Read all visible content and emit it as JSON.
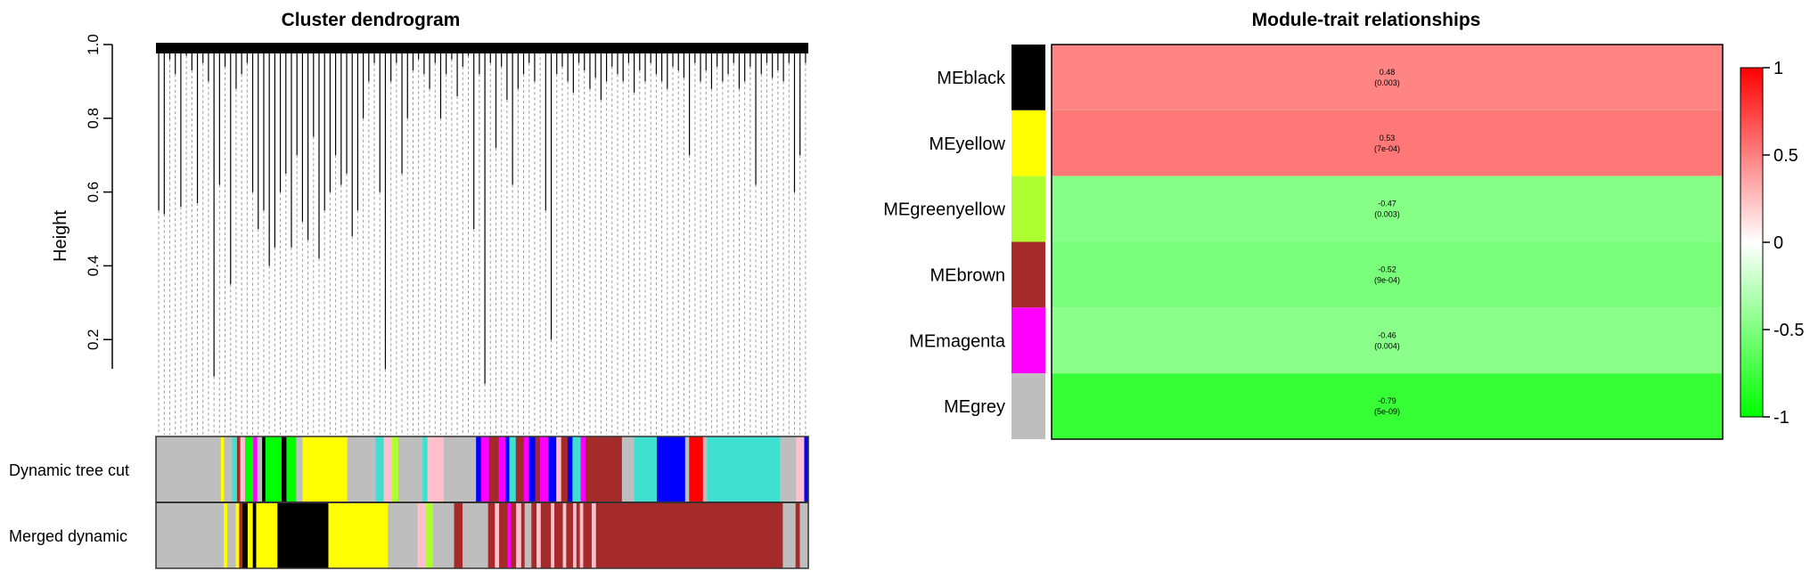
{
  "chart_data": [
    {
      "type": "dendrogram",
      "title": "Cluster dendrogram",
      "ylabel": "Height",
      "xlabel": "",
      "ylim": [
        0.0,
        1.0
      ],
      "yticks": [
        0.2,
        0.4,
        0.6,
        0.8,
        1.0
      ],
      "ytick_labels": [
        "0.2",
        "0.4",
        "0.6",
        "0.8",
        "1.0"
      ],
      "leaf_heights": [
        0.55,
        0.54,
        0.96,
        0.92,
        0.56,
        0.97,
        0.93,
        0.57,
        0.95,
        0.9,
        0.1,
        0.62,
        0.94,
        0.35,
        0.88,
        0.92,
        0.95,
        0.6,
        0.5,
        0.55,
        0.4,
        0.45,
        0.6,
        0.65,
        0.45,
        0.7,
        0.52,
        0.47,
        0.75,
        0.42,
        0.55,
        0.6,
        0.7,
        0.62,
        0.65,
        0.48,
        0.55,
        0.8,
        0.9,
        0.95,
        0.6,
        0.12,
        0.9,
        0.95,
        0.65,
        0.8,
        0.93,
        0.96,
        0.92,
        0.88,
        0.95,
        0.8,
        0.92,
        0.96,
        0.86,
        0.94,
        0.97,
        0.5,
        0.92,
        0.08,
        0.95,
        0.72,
        0.94,
        0.85,
        0.62,
        0.88,
        0.92,
        0.95,
        0.9,
        0.98,
        0.55,
        0.2,
        0.92,
        0.94,
        0.9,
        0.87,
        0.95,
        0.93,
        0.88,
        0.91,
        0.85,
        0.9,
        0.94,
        0.92,
        0.9,
        0.95,
        0.87,
        0.93,
        0.9,
        0.95,
        0.92,
        0.9,
        0.88,
        0.94,
        0.93,
        0.91,
        0.7,
        0.95,
        0.9,
        0.93,
        0.88,
        0.94,
        0.9,
        0.92,
        0.95,
        0.88,
        0.9,
        0.94,
        0.62,
        0.92,
        0.95,
        0.91,
        0.93,
        0.9,
        0.95,
        0.6,
        0.7,
        0.95
      ],
      "color_bars": [
        {
          "label": "Dynamic tree cut",
          "segments": [
            {
              "color": "#bebebe",
              "w": 0.08
            },
            {
              "color": "#ffff00",
              "w": 0.004
            },
            {
              "color": "#bebebe",
              "w": 0.01
            },
            {
              "color": "#40e0d0",
              "w": 0.006
            },
            {
              "color": "#a52a2a",
              "w": 0.004
            },
            {
              "color": "#ffc0cb",
              "w": 0.006
            },
            {
              "color": "#00ff00",
              "w": 0.01
            },
            {
              "color": "#ff00ff",
              "w": 0.005
            },
            {
              "color": "#bebebe",
              "w": 0.006
            },
            {
              "color": "#000000",
              "w": 0.004
            },
            {
              "color": "#00ff00",
              "w": 0.02
            },
            {
              "color": "#000000",
              "w": 0.006
            },
            {
              "color": "#00ff00",
              "w": 0.012
            },
            {
              "color": "#bebebe",
              "w": 0.008
            },
            {
              "color": "#ffff00",
              "w": 0.055
            },
            {
              "color": "#bebebe",
              "w": 0.035
            },
            {
              "color": "#40e0d0",
              "w": 0.01
            },
            {
              "color": "#ffc0cb",
              "w": 0.01
            },
            {
              "color": "#adff2f",
              "w": 0.008
            },
            {
              "color": "#bebebe",
              "w": 0.03
            },
            {
              "color": "#40e0d0",
              "w": 0.006
            },
            {
              "color": "#ffc0cb",
              "w": 0.02
            },
            {
              "color": "#bebebe",
              "w": 0.04
            },
            {
              "color": "#0000ff",
              "w": 0.006
            },
            {
              "color": "#ff00ff",
              "w": 0.01
            },
            {
              "color": "#a52a2a",
              "w": 0.012
            },
            {
              "color": "#ff00ff",
              "w": 0.008
            },
            {
              "color": "#0000ff",
              "w": 0.005
            },
            {
              "color": "#40e0d0",
              "w": 0.008
            },
            {
              "color": "#a52a2a",
              "w": 0.01
            },
            {
              "color": "#ff00ff",
              "w": 0.006
            },
            {
              "color": "#0000ff",
              "w": 0.008
            },
            {
              "color": "#a52a2a",
              "w": 0.006
            },
            {
              "color": "#ff00ff",
              "w": 0.01
            },
            {
              "color": "#0000ff",
              "w": 0.01
            },
            {
              "color": "#ffc0cb",
              "w": 0.006
            },
            {
              "color": "#a52a2a",
              "w": 0.008
            },
            {
              "color": "#0000ff",
              "w": 0.006
            },
            {
              "color": "#40e0d0",
              "w": 0.01
            },
            {
              "color": "#ff00ff",
              "w": 0.006
            },
            {
              "color": "#a52a2a",
              "w": 0.045
            },
            {
              "color": "#bebebe",
              "w": 0.015
            },
            {
              "color": "#40e0d0",
              "w": 0.028
            },
            {
              "color": "#0000ff",
              "w": 0.035
            },
            {
              "color": "#bebebe",
              "w": 0.005
            },
            {
              "color": "#ff0000",
              "w": 0.017
            },
            {
              "color": "#bebebe",
              "w": 0.005
            },
            {
              "color": "#40e0d0",
              "w": 0.09
            },
            {
              "color": "#bebebe",
              "w": 0.02
            },
            {
              "color": "#ffc0cb",
              "w": 0.01
            },
            {
              "color": "#0000ff",
              "w": 0.005
            }
          ]
        },
        {
          "label": "Merged dynamic",
          "segments": [
            {
              "color": "#bebebe",
              "w": 0.08
            },
            {
              "color": "#ffff00",
              "w": 0.004
            },
            {
              "color": "#bebebe",
              "w": 0.01
            },
            {
              "color": "#ffff00",
              "w": 0.004
            },
            {
              "color": "#a52a2a",
              "w": 0.004
            },
            {
              "color": "#000000",
              "w": 0.006
            },
            {
              "color": "#ffff00",
              "w": 0.006
            },
            {
              "color": "#000000",
              "w": 0.004
            },
            {
              "color": "#ffff00",
              "w": 0.025
            },
            {
              "color": "#000000",
              "w": 0.06
            },
            {
              "color": "#ffff00",
              "w": 0.07
            },
            {
              "color": "#bebebe",
              "w": 0.035
            },
            {
              "color": "#ffc0cb",
              "w": 0.01
            },
            {
              "color": "#adff2f",
              "w": 0.008
            },
            {
              "color": "#bebebe",
              "w": 0.025
            },
            {
              "color": "#a52a2a",
              "w": 0.01
            },
            {
              "color": "#bebebe",
              "w": 0.03
            },
            {
              "color": "#a52a2a",
              "w": 0.008
            },
            {
              "color": "#ffc0cb",
              "w": 0.005
            },
            {
              "color": "#a52a2a",
              "w": 0.01
            },
            {
              "color": "#ff00ff",
              "w": 0.004
            },
            {
              "color": "#a52a2a",
              "w": 0.006
            },
            {
              "color": "#ffc0cb",
              "w": 0.006
            },
            {
              "color": "#a52a2a",
              "w": 0.004
            },
            {
              "color": "#bebebe",
              "w": 0.008
            },
            {
              "color": "#a52a2a",
              "w": 0.006
            },
            {
              "color": "#ffc0cb",
              "w": 0.005
            },
            {
              "color": "#a52a2a",
              "w": 0.012
            },
            {
              "color": "#ffc0cb",
              "w": 0.004
            },
            {
              "color": "#a52a2a",
              "w": 0.01
            },
            {
              "color": "#ffc0cb",
              "w": 0.004
            },
            {
              "color": "#a52a2a",
              "w": 0.008
            },
            {
              "color": "#ffc0cb",
              "w": 0.004
            },
            {
              "color": "#a52a2a",
              "w": 0.004
            },
            {
              "color": "#ffc0cb",
              "w": 0.004
            },
            {
              "color": "#a52a2a",
              "w": 0.01
            },
            {
              "color": "#ffc0cb",
              "w": 0.005
            },
            {
              "color": "#a52a2a",
              "w": 0.22
            },
            {
              "color": "#bebebe",
              "w": 0.015
            },
            {
              "color": "#a52a2a",
              "w": 0.005
            },
            {
              "color": "#bebebe",
              "w": 0.01
            }
          ]
        }
      ]
    },
    {
      "type": "heatmap",
      "title": "Module-trait relationships",
      "rows": [
        "MEblack",
        "MEyellow",
        "MEgreenyellow",
        "MEbrown",
        "MEmagenta",
        "MEgrey"
      ],
      "row_colors": [
        "#000000",
        "#ffff00",
        "#adff2f",
        "#a52a2a",
        "#ff00ff",
        "#bebebe"
      ],
      "correlations": [
        0.48,
        0.53,
        -0.47,
        -0.52,
        -0.46,
        -0.79
      ],
      "cell_labels": [
        "0.48",
        "0.53",
        "-0.47",
        "-0.52",
        "-0.46",
        "-0.79"
      ],
      "pvalue_labels": [
        "(0.003)",
        "(7e-04)",
        "(0.003)",
        "(9e-04)",
        "(0.004)",
        "(5e-09)"
      ],
      "colorbar": {
        "range": [
          -1,
          1
        ],
        "ticks": [
          1,
          0.5,
          0,
          -0.5,
          -1
        ],
        "tick_labels": [
          "1",
          "0.5",
          "0",
          "-0.5",
          "-1"
        ],
        "low_color": "#00ff00",
        "mid_color": "#ffffff",
        "high_color": "#ff0000"
      }
    }
  ]
}
